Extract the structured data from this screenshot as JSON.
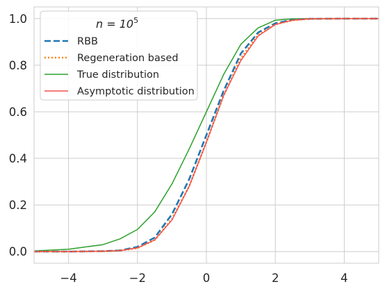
{
  "chart_data": {
    "type": "line",
    "xlim": [
      -5,
      5
    ],
    "ylim": [
      -0.05,
      1.05
    ],
    "x_ticks": [
      -4,
      -2,
      0,
      2,
      4
    ],
    "y_ticks": [
      0.0,
      0.2,
      0.4,
      0.6,
      0.8,
      1.0
    ],
    "x_tick_labels": [
      "−4",
      "−2",
      "0",
      "2",
      "4"
    ],
    "y_tick_labels": [
      "0.0",
      "0.2",
      "0.4",
      "0.6",
      "0.8",
      "1.0"
    ],
    "grid": true,
    "legend": {
      "placement": "top-left",
      "title_prefix": "n = 10",
      "title_exponent": "5"
    },
    "series": [
      {
        "name": "RBB",
        "color": "#1f77b4",
        "style": "dashed",
        "x": [
          -5,
          -4,
          -3,
          -2.5,
          -2,
          -1.5,
          -1,
          -0.5,
          0,
          0.5,
          1,
          1.5,
          2,
          2.5,
          3,
          4,
          5
        ],
        "y": [
          0.0,
          0.0,
          0.002,
          0.005,
          0.02,
          0.06,
          0.16,
          0.31,
          0.5,
          0.69,
          0.85,
          0.94,
          0.98,
          0.995,
          0.999,
          1.0,
          1.0
        ]
      },
      {
        "name": "Regeneration based",
        "color": "#ff7f0e",
        "style": "dotted",
        "x": [
          -5,
          -4,
          -3,
          -2.5,
          -2,
          -1.5,
          -1,
          -0.5,
          0,
          0.5,
          1,
          1.5,
          2,
          2.5,
          3,
          4,
          5
        ],
        "y": [
          0.0,
          0.0,
          0.001,
          0.004,
          0.015,
          0.05,
          0.14,
          0.28,
          0.47,
          0.67,
          0.83,
          0.93,
          0.975,
          0.993,
          0.999,
          1.0,
          1.0
        ]
      },
      {
        "name": "True distribution",
        "color": "#2ca02c",
        "style": "solid",
        "x": [
          -5,
          -4,
          -3,
          -2.5,
          -2,
          -1.5,
          -1,
          -0.5,
          0,
          0.5,
          1,
          1.5,
          2,
          2.5,
          3,
          4,
          5
        ],
        "y": [
          0.003,
          0.01,
          0.03,
          0.055,
          0.095,
          0.17,
          0.29,
          0.44,
          0.6,
          0.76,
          0.89,
          0.96,
          0.993,
          0.999,
          1.0,
          1.0,
          1.0
        ]
      },
      {
        "name": "Asymptotic distribution",
        "color": "#f0504f",
        "style": "solid",
        "x": [
          -5,
          -4,
          -3,
          -2.5,
          -2,
          -1.5,
          -1,
          -0.5,
          0,
          0.5,
          1,
          1.5,
          2,
          2.5,
          3,
          4,
          5
        ],
        "y": [
          0.0,
          0.0,
          0.002,
          0.004,
          0.016,
          0.05,
          0.135,
          0.28,
          0.47,
          0.67,
          0.82,
          0.925,
          0.975,
          0.993,
          0.999,
          1.0,
          1.0
        ]
      }
    ]
  }
}
